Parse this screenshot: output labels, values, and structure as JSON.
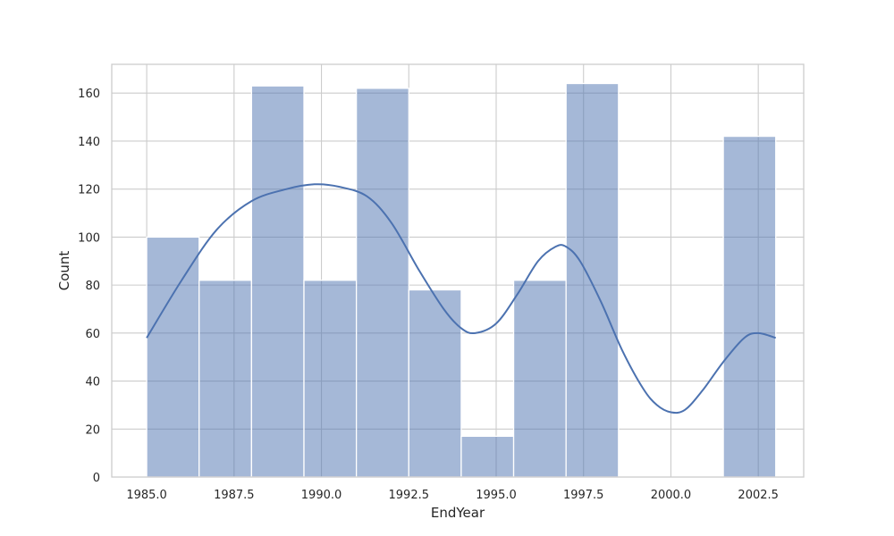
{
  "chart_data": {
    "type": "bar",
    "subtype": "histogram-with-kde",
    "title": "",
    "xlabel": "EndYear",
    "ylabel": "Count",
    "xlim": [
      1984.0,
      2003.8
    ],
    "ylim": [
      0,
      172
    ],
    "xticks": [
      1985.0,
      1987.5,
      1990.0,
      1992.5,
      1995.0,
      1997.5,
      2000.0,
      2002.5
    ],
    "xtick_labels": [
      "1985.0",
      "1987.5",
      "1990.0",
      "1992.5",
      "1995.0",
      "1997.5",
      "2000.0",
      "2002.5"
    ],
    "yticks": [
      0,
      20,
      40,
      60,
      80,
      100,
      120,
      140,
      160
    ],
    "ytick_labels": [
      "0",
      "20",
      "40",
      "60",
      "80",
      "100",
      "120",
      "140",
      "160"
    ],
    "bin_edges": [
      1985.0,
      1986.5,
      1988.0,
      1989.5,
      1991.0,
      1992.5,
      1994.0,
      1995.5,
      1997.0,
      1998.5,
      2000.0,
      2001.5,
      2003.0
    ],
    "counts": [
      100,
      82,
      163,
      82,
      162,
      78,
      17,
      82,
      164,
      0,
      0,
      142
    ],
    "kde": {
      "x": [
        1985.0,
        1986.0,
        1987.0,
        1988.0,
        1989.0,
        1989.8,
        1990.5,
        1991.3,
        1992.0,
        1992.8,
        1993.5,
        1994.0,
        1994.4,
        1995.0,
        1995.6,
        1996.2,
        1996.7,
        1997.0,
        1997.4,
        1998.0,
        1998.6,
        1999.2,
        1999.6,
        2000.0,
        2000.4,
        2000.9,
        2001.5,
        2002.1,
        2002.5,
        2003.0
      ],
      "y": [
        58,
        82,
        103,
        115,
        120,
        122,
        121,
        117,
        106,
        86,
        70,
        62,
        60,
        64,
        76,
        90,
        96,
        96,
        90,
        73,
        53,
        37,
        30,
        27,
        28,
        36,
        48,
        58,
        60,
        58
      ]
    },
    "grid": true,
    "colors": {
      "bar": "#4c72b0",
      "bar_opacity": 0.5,
      "kde": "#4c72b0",
      "grid": "#cccccc",
      "background": "#ffffff"
    }
  }
}
